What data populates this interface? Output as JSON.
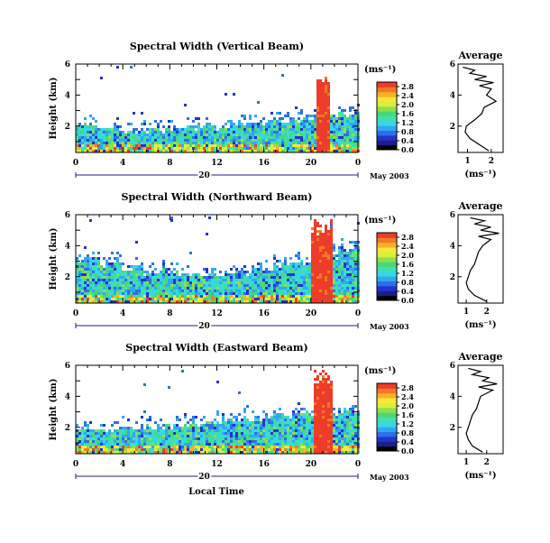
{
  "common": {
    "ylabel": "Height (km)",
    "xlabel": "Local Time",
    "date_label": "May 2003",
    "day_label": "20",
    "unit_label": "(ms⁻¹)",
    "avg_title": "Average",
    "avg_xlabel": "(ms⁻¹)"
  },
  "colors": {
    "scale": [
      "#000000",
      "#1d1d8c",
      "#2233cc",
      "#2d6fe8",
      "#30a8f2",
      "#35d8e8",
      "#3fe0b0",
      "#4ad77a",
      "#8fe04a",
      "#d8f03c",
      "#f8e83a",
      "#f8b028",
      "#f37a22",
      "#ee3c2a"
    ]
  },
  "chart_data": [
    {
      "type": "heatmap",
      "title": "Spectral Width (Vertical Beam)",
      "x_ticks": [
        "0",
        "4",
        "8",
        "12",
        "16",
        "20",
        "0"
      ],
      "y_ticks": [
        "2",
        "4",
        "6"
      ],
      "xlim": [
        0,
        24
      ],
      "ylim": [
        0.3,
        6
      ],
      "colorbar": {
        "ticks": [
          "0.0",
          "0.4",
          "0.8",
          "1.2",
          "1.6",
          "2.0",
          "2.4",
          "2.8"
        ],
        "range": [
          0,
          3.0
        ]
      },
      "storm": {
        "t_start": 20.3,
        "t_end": 21.6,
        "h_top": 5.8
      },
      "layer_top_km": [
        2.1,
        1.9,
        1.7,
        1.8,
        1.9,
        2.0,
        2.0,
        2.1,
        2.2,
        2.4,
        2.5,
        2.7,
        2.8
      ],
      "average": {
        "title": "Average",
        "x_ticks": [
          "1",
          "2"
        ],
        "xlim": [
          0.6,
          2.5
        ],
        "y_ticks": [
          "2",
          "4",
          "6"
        ],
        "ylim": [
          0.3,
          6
        ],
        "h": [
          0.4,
          0.8,
          1.2,
          1.6,
          2.0,
          2.4,
          2.8,
          3.2,
          3.6,
          4.0,
          4.4,
          4.6,
          4.8,
          5.0,
          5.2,
          5.4,
          5.6,
          5.8
        ],
        "w": [
          1.9,
          1.5,
          1.1,
          0.9,
          0.95,
          1.3,
          1.6,
          1.7,
          2.2,
          1.8,
          2.0,
          1.5,
          2.1,
          1.3,
          1.8,
          1.1,
          1.3,
          0.8
        ]
      }
    },
    {
      "type": "heatmap",
      "title": "Spectral Width (Northward Beam)",
      "x_ticks": [
        "0",
        "4",
        "8",
        "12",
        "16",
        "20",
        "0"
      ],
      "y_ticks": [
        "2",
        "4",
        "6"
      ],
      "xlim": [
        0,
        24
      ],
      "ylim": [
        0.3,
        6
      ],
      "colorbar": {
        "ticks": [
          "0.0",
          "0.4",
          "0.8",
          "1.2",
          "1.6",
          "2.0",
          "2.4",
          "2.8"
        ],
        "range": [
          0,
          3.0
        ]
      },
      "storm": {
        "t_start": 20.0,
        "t_end": 21.8,
        "h_top": 5.9
      },
      "layer_top_km": [
        3.2,
        2.9,
        2.6,
        2.4,
        2.3,
        2.2,
        2.2,
        2.3,
        2.5,
        2.8,
        3.0,
        3.4,
        3.8
      ],
      "average": {
        "title": "Average",
        "x_ticks": [
          "1",
          "2"
        ],
        "xlim": [
          0.6,
          2.8
        ],
        "y_ticks": [
          "2",
          "4",
          "6"
        ],
        "ylim": [
          0.3,
          6
        ],
        "h": [
          0.4,
          0.8,
          1.2,
          1.6,
          2.0,
          2.4,
          2.8,
          3.2,
          3.6,
          4.0,
          4.4,
          4.6,
          4.8,
          5.0,
          5.2,
          5.4,
          5.6,
          5.8
        ],
        "w": [
          2.0,
          1.4,
          1.1,
          1.0,
          1.1,
          1.2,
          1.4,
          1.5,
          1.6,
          1.8,
          2.2,
          1.6,
          2.6,
          1.7,
          2.2,
          1.4,
          1.9,
          1.2
        ]
      }
    },
    {
      "type": "heatmap",
      "title": "Spectral Width (Eastward Beam)",
      "x_ticks": [
        "0",
        "4",
        "8",
        "12",
        "16",
        "20",
        "0"
      ],
      "y_ticks": [
        "2",
        "4",
        "6"
      ],
      "xlim": [
        0,
        24
      ],
      "ylim": [
        0.3,
        6
      ],
      "colorbar": {
        "ticks": [
          "0.0",
          "0.4",
          "0.8",
          "1.2",
          "1.6",
          "2.0",
          "2.4",
          "2.8"
        ],
        "range": [
          0,
          3.0
        ]
      },
      "storm": {
        "t_start": 20.2,
        "t_end": 21.7,
        "h_top": 5.9
      },
      "layer_top_km": [
        2.0,
        1.9,
        2.0,
        2.1,
        2.2,
        2.3,
        2.4,
        2.6,
        2.7,
        2.9,
        3.0,
        3.1,
        3.2
      ],
      "average": {
        "title": "Average",
        "x_ticks": [
          "1",
          "2"
        ],
        "xlim": [
          0.6,
          2.8
        ],
        "y_ticks": [
          "2",
          "4",
          "6"
        ],
        "ylim": [
          0.3,
          6
        ],
        "h": [
          0.4,
          0.8,
          1.2,
          1.6,
          2.0,
          2.4,
          2.8,
          3.2,
          3.6,
          4.0,
          4.4,
          4.6,
          4.8,
          5.0,
          5.2,
          5.4,
          5.6,
          5.8
        ],
        "w": [
          1.8,
          1.3,
          1.1,
          1.0,
          1.1,
          1.2,
          1.3,
          1.5,
          1.6,
          1.7,
          2.3,
          1.6,
          2.5,
          1.8,
          2.1,
          1.3,
          1.7,
          1.1
        ]
      }
    }
  ]
}
